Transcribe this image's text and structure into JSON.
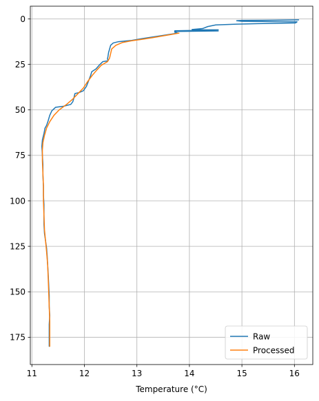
{
  "chart_data": {
    "type": "line",
    "title": "",
    "xlabel": "Temperature (°C)",
    "ylabel": "",
    "xlim": [
      10.97,
      16.35
    ],
    "ylim": [
      190,
      -7
    ],
    "y_inverted": true,
    "grid": true,
    "legend_position": "lower-right",
    "x_ticks": [
      11,
      12,
      13,
      14,
      15,
      16
    ],
    "y_ticks": [
      0,
      25,
      50,
      75,
      100,
      125,
      150,
      175
    ],
    "series": [
      {
        "name": "Raw",
        "color": "#1f77b4",
        "points": [
          [
            16.08,
            0.5
          ],
          [
            15.6,
            0.7
          ],
          [
            15.0,
            0.8
          ],
          [
            14.9,
            1.0
          ],
          [
            15.0,
            1.3
          ],
          [
            15.6,
            1.5
          ],
          [
            16.05,
            1.6
          ],
          [
            16.02,
            2.2
          ],
          [
            15.3,
            2.6
          ],
          [
            14.9,
            2.9
          ],
          [
            14.5,
            3.3
          ],
          [
            14.35,
            4.2
          ],
          [
            14.25,
            5.3
          ],
          [
            14.05,
            5.8
          ],
          [
            14.25,
            6.0
          ],
          [
            14.55,
            6.0
          ],
          [
            14.15,
            6.3
          ],
          [
            13.72,
            6.5
          ],
          [
            14.55,
            6.6
          ],
          [
            13.72,
            6.9
          ],
          [
            13.72,
            7.3
          ],
          [
            13.78,
            7.8
          ],
          [
            13.4,
            9.5
          ],
          [
            13.1,
            10.8
          ],
          [
            12.9,
            11.8
          ],
          [
            12.65,
            12.5
          ],
          [
            12.55,
            13.2
          ],
          [
            12.5,
            14.5
          ],
          [
            12.48,
            16.5
          ],
          [
            12.46,
            18.5
          ],
          [
            12.45,
            20.5
          ],
          [
            12.44,
            22.0
          ],
          [
            12.45,
            23.0
          ],
          [
            12.35,
            23.5
          ],
          [
            12.28,
            25.5
          ],
          [
            12.22,
            27.5
          ],
          [
            12.14,
            29.0
          ],
          [
            12.12,
            31.0
          ],
          [
            12.08,
            34.0
          ],
          [
            12.04,
            37.0
          ],
          [
            11.98,
            39.5
          ],
          [
            11.9,
            40.5
          ],
          [
            11.82,
            41.0
          ],
          [
            11.8,
            43.5
          ],
          [
            11.78,
            45.5
          ],
          [
            11.74,
            47.0
          ],
          [
            11.6,
            48.0
          ],
          [
            11.45,
            48.6
          ],
          [
            11.38,
            50.5
          ],
          [
            11.34,
            53.0
          ],
          [
            11.31,
            56.0
          ],
          [
            11.28,
            58.5
          ],
          [
            11.25,
            60.0
          ],
          [
            11.23,
            63.0
          ],
          [
            11.2,
            66.5
          ],
          [
            11.19,
            70.0
          ],
          [
            11.2,
            75.0
          ],
          [
            11.21,
            80.0
          ],
          [
            11.21,
            86.0
          ],
          [
            11.22,
            92.0
          ],
          [
            11.22,
            97.0
          ],
          [
            11.23,
            102.0
          ],
          [
            11.23,
            108.0
          ],
          [
            11.23,
            113.0
          ],
          [
            11.24,
            118.0
          ],
          [
            11.26,
            122.0
          ],
          [
            11.28,
            126.0
          ],
          [
            11.29,
            130.0
          ],
          [
            11.3,
            135.0
          ],
          [
            11.31,
            140.0
          ],
          [
            11.32,
            146.0
          ],
          [
            11.33,
            152.0
          ],
          [
            11.33,
            158.0
          ],
          [
            11.34,
            163.0
          ],
          [
            11.33,
            168.0
          ],
          [
            11.33,
            174.0
          ],
          [
            11.33,
            180.0
          ]
        ]
      },
      {
        "name": "Processed",
        "color": "#ff7f0e",
        "points": [
          [
            13.8,
            7.8
          ],
          [
            13.5,
            9.3
          ],
          [
            13.3,
            10.3
          ],
          [
            13.1,
            11.2
          ],
          [
            12.9,
            12.0
          ],
          [
            12.72,
            13.0
          ],
          [
            12.6,
            14.5
          ],
          [
            12.52,
            16.5
          ],
          [
            12.5,
            19.0
          ],
          [
            12.48,
            21.5
          ],
          [
            12.44,
            23.5
          ],
          [
            12.32,
            25.5
          ],
          [
            12.24,
            28.0
          ],
          [
            12.15,
            31.0
          ],
          [
            12.06,
            34.5
          ],
          [
            11.98,
            38.0
          ],
          [
            11.88,
            41.0
          ],
          [
            11.78,
            44.0
          ],
          [
            11.66,
            47.0
          ],
          [
            11.52,
            50.0
          ],
          [
            11.42,
            53.0
          ],
          [
            11.34,
            56.5
          ],
          [
            11.28,
            60.0
          ],
          [
            11.24,
            64.0
          ],
          [
            11.21,
            68.0
          ],
          [
            11.2,
            72.0
          ],
          [
            11.2,
            78.0
          ],
          [
            11.21,
            85.0
          ],
          [
            11.22,
            92.0
          ],
          [
            11.22,
            100.0
          ],
          [
            11.23,
            108.0
          ],
          [
            11.24,
            116.0
          ],
          [
            11.26,
            122.0
          ],
          [
            11.28,
            128.0
          ],
          [
            11.3,
            135.0
          ],
          [
            11.31,
            142.0
          ],
          [
            11.32,
            150.0
          ],
          [
            11.33,
            158.0
          ],
          [
            11.34,
            166.0
          ],
          [
            11.34,
            174.0
          ],
          [
            11.34,
            180.0
          ]
        ]
      }
    ]
  }
}
